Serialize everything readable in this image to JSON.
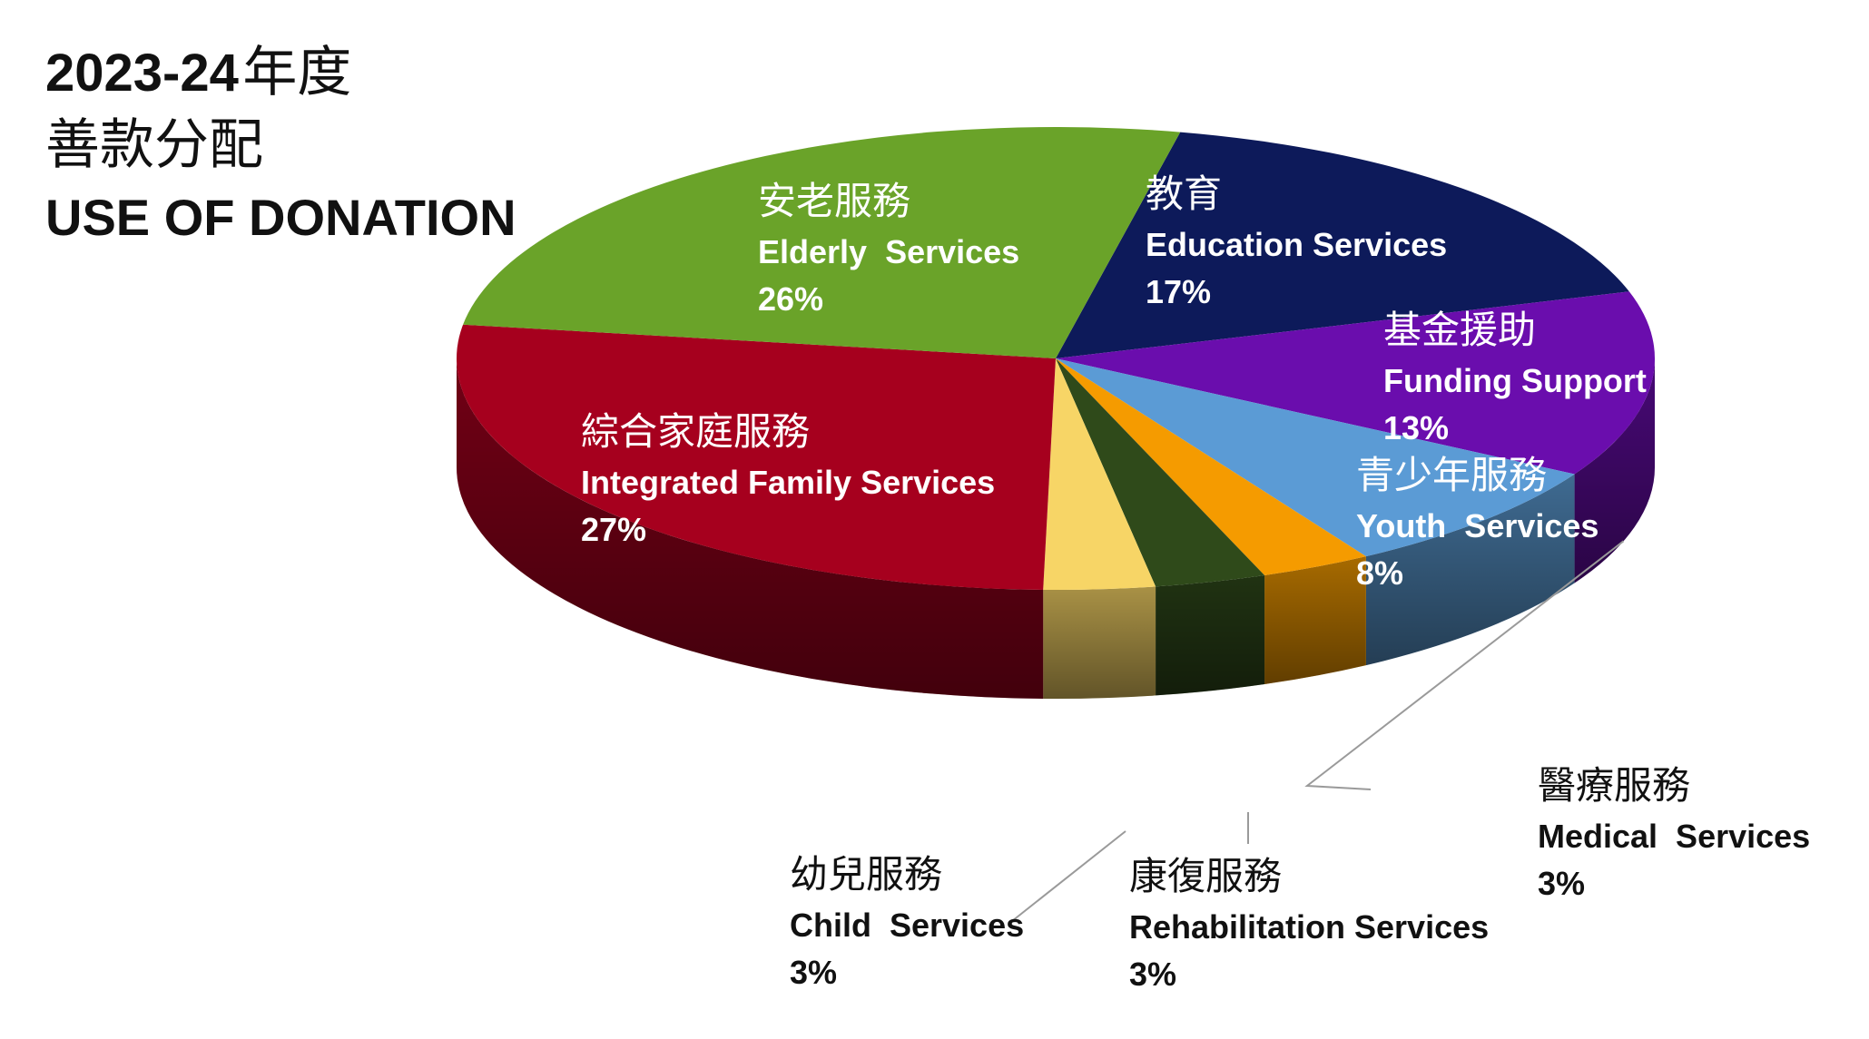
{
  "title": {
    "year": "2023-24",
    "year_suffix": "年度",
    "chinese": "善款分配",
    "english": "USE OF DONATION"
  },
  "chart_data": {
    "type": "pie",
    "style": "3d",
    "slices": [
      {
        "label_zh": "教育",
        "label_en": "Education Services",
        "value": 17,
        "value_text": "17%",
        "color": "#0D1A5A"
      },
      {
        "label_zh": "基金援助",
        "label_en": "Funding Support",
        "value": 13,
        "value_text": "13%",
        "color": "#6A0DAD"
      },
      {
        "label_zh": "青少年服務",
        "label_en": "Youth  Services",
        "value": 8,
        "value_text": "8%",
        "color": "#5B9BD5"
      },
      {
        "label_zh": "醫療服務",
        "label_en": "Medical  Services",
        "value": 3,
        "value_text": "3%",
        "color": "#F59B00"
      },
      {
        "label_zh": "康復服務",
        "label_en": "Rehabilitation Services",
        "value": 3,
        "value_text": "3%",
        "color": "#2F4A1A"
      },
      {
        "label_zh": "幼兒服務",
        "label_en": "Child  Services",
        "value": 3,
        "value_text": "3%",
        "color": "#F7D566"
      },
      {
        "label_zh": "綜合家庭服務",
        "label_en": "Integrated Family Services",
        "value": 27,
        "value_text": "27%",
        "color": "#A6001E"
      },
      {
        "label_zh": "安老服務",
        "label_en": "Elderly  Services",
        "value": 26,
        "value_text": "26%",
        "color": "#6AA329"
      }
    ]
  }
}
